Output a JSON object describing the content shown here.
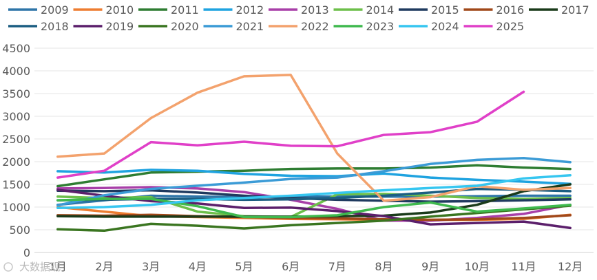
{
  "watermark": "大数据观",
  "chart_data": {
    "type": "line",
    "categories": [
      "1月",
      "2月",
      "3月",
      "4月",
      "5月",
      "6月",
      "7月",
      "8月",
      "9月",
      "10月",
      "11月",
      "12月"
    ],
    "ylim": [
      0,
      4500
    ],
    "yticks": [
      0,
      500,
      1000,
      1500,
      2000,
      2500,
      3000,
      3500,
      4000,
      4500
    ],
    "grid": true,
    "legend_position": "top",
    "series": [
      {
        "name": "2009",
        "color": "#2e75a8",
        "values": [
          1050,
          1150,
          1250,
          1230,
          1220,
          1230,
          1230,
          1230,
          1230,
          1240,
          1250,
          1250
        ]
      },
      {
        "name": "2010",
        "color": "#ed7d31",
        "values": [
          1000,
          900,
          800,
          780,
          760,
          740,
          730,
          720,
          720,
          720,
          740,
          830
        ]
      },
      {
        "name": "2011",
        "color": "#2e7d32",
        "values": [
          1460,
          1610,
          1760,
          1780,
          1800,
          1840,
          1850,
          1850,
          1870,
          1920,
          1870,
          1840
        ]
      },
      {
        "name": "2012",
        "color": "#1fa3e0",
        "values": [
          1790,
          1760,
          1820,
          1800,
          1730,
          1690,
          1680,
          1740,
          1650,
          1600,
          1560,
          1510
        ]
      },
      {
        "name": "2013",
        "color": "#a83fa8",
        "values": [
          1410,
          1420,
          1440,
          1410,
          1330,
          1160,
          960,
          700,
          700,
          760,
          850,
          1050
        ]
      },
      {
        "name": "2014",
        "color": "#6dbf4a",
        "values": [
          1230,
          1200,
          1220,
          900,
          800,
          780,
          1280,
          1290,
          1250,
          1200,
          1180,
          1200
        ]
      },
      {
        "name": "2015",
        "color": "#1f3a5f",
        "values": [
          1360,
          1350,
          1370,
          1320,
          1250,
          1200,
          1160,
          1140,
          1120,
          1130,
          1150,
          1170
        ]
      },
      {
        "name": "2016",
        "color": "#a0481a",
        "values": [
          820,
          810,
          830,
          800,
          780,
          760,
          750,
          730,
          720,
          730,
          760,
          820
        ]
      },
      {
        "name": "2017",
        "color": "#1a3b1a",
        "values": [
          800,
          790,
          790,
          790,
          790,
          790,
          800,
          810,
          880,
          1050,
          1350,
          1500
        ]
      },
      {
        "name": "2018",
        "color": "#1c5e82",
        "values": [
          1150,
          1160,
          1180,
          1180,
          1160,
          1170,
          1200,
          1250,
          1320,
          1400,
          1380,
          1350
        ]
      },
      {
        "name": "2019",
        "color": "#5b1f6b",
        "values": [
          1380,
          1250,
          1130,
          1080,
          980,
          990,
          910,
          800,
          620,
          650,
          680,
          540
        ]
      },
      {
        "name": "2020",
        "color": "#3a7520",
        "values": [
          510,
          480,
          630,
          590,
          530,
          600,
          650,
          700,
          790,
          870,
          950,
          1030
        ]
      },
      {
        "name": "2021",
        "color": "#3b9bd6",
        "values": [
          1040,
          1260,
          1400,
          1470,
          1540,
          1620,
          1650,
          1790,
          1950,
          2040,
          2080,
          1990
        ]
      },
      {
        "name": "2022",
        "color": "#f3a26d",
        "values": [
          2110,
          2180,
          2960,
          3520,
          3880,
          3910,
          2180,
          1140,
          1220,
          1460,
          1380,
          1420
        ]
      },
      {
        "name": "2023",
        "color": "#3fb94e",
        "values": [
          1150,
          1180,
          1180,
          1020,
          780,
          780,
          820,
          1000,
          1100,
          900,
          970,
          1050
        ]
      },
      {
        "name": "2024",
        "color": "#36c6f0",
        "values": [
          980,
          1000,
          1050,
          1150,
          1200,
          1250,
          1310,
          1370,
          1420,
          1470,
          1630,
          1700
        ]
      },
      {
        "name": "2025",
        "color": "#e040c8",
        "values": [
          1650,
          1800,
          2430,
          2360,
          2440,
          2350,
          2340,
          2590,
          2650,
          2880,
          3540,
          null
        ]
      }
    ]
  }
}
